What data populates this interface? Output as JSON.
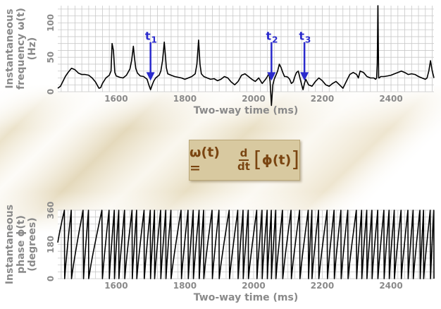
{
  "chart_data": [
    {
      "type": "line",
      "id": "frequency",
      "xlabel": "Two-way time (ms)",
      "ylabel_lines": [
        "Instantaneous",
        "frequency ω(t)",
        "(Hz)"
      ],
      "xlim": [
        1430,
        2525
      ],
      "ylim": [
        0,
        125
      ],
      "xticks": [
        1600,
        1800,
        2000,
        2200,
        2400
      ],
      "yticks": [
        0,
        50,
        100
      ],
      "grid": true,
      "line_color": "#000000",
      "marker_color": "#2a2acc",
      "markers": [
        {
          "label": "t",
          "sub": "1",
          "x": 1700
        },
        {
          "label": "t",
          "sub": "2",
          "x": 2052
        },
        {
          "label": "t",
          "sub": "3",
          "x": 2148
        }
      ],
      "x": [
        1430,
        1438,
        1445,
        1452,
        1460,
        1470,
        1480,
        1490,
        1500,
        1510,
        1520,
        1530,
        1540,
        1550,
        1555,
        1560,
        1570,
        1580,
        1585,
        1588,
        1592,
        1596,
        1600,
        1610,
        1620,
        1630,
        1640,
        1645,
        1650,
        1653,
        1657,
        1662,
        1670,
        1680,
        1690,
        1695,
        1700,
        1705,
        1710,
        1715,
        1720,
        1725,
        1730,
        1735,
        1740,
        1743,
        1746,
        1750,
        1760,
        1770,
        1780,
        1790,
        1800,
        1810,
        1820,
        1830,
        1835,
        1840,
        1844,
        1848,
        1855,
        1865,
        1875,
        1885,
        1895,
        1905,
        1915,
        1925,
        1935,
        1945,
        1955,
        1965,
        1975,
        1985,
        1995,
        2005,
        2015,
        2025,
        2035,
        2040,
        2045,
        2048,
        2052,
        2056,
        2060,
        2065,
        2070,
        2075,
        2080,
        2085,
        2090,
        2095,
        2100,
        2105,
        2110,
        2115,
        2120,
        2125,
        2130,
        2135,
        2140,
        2144,
        2148,
        2152,
        2156,
        2160,
        2170,
        2180,
        2190,
        2200,
        2210,
        2220,
        2230,
        2240,
        2250,
        2260,
        2270,
        2280,
        2290,
        2300,
        2305,
        2310,
        2320,
        2330,
        2340,
        2350,
        2355,
        2358,
        2360,
        2362,
        2364,
        2366,
        2370,
        2380,
        2390,
        2400,
        2410,
        2420,
        2430,
        2440,
        2450,
        2460,
        2470,
        2480,
        2490,
        2500,
        2505,
        2510,
        2515,
        2520,
        2525
      ],
      "values": [
        5,
        8,
        15,
        22,
        28,
        34,
        32,
        27,
        25,
        25,
        24,
        20,
        14,
        5,
        6,
        12,
        20,
        24,
        30,
        70,
        60,
        28,
        23,
        21,
        20,
        24,
        33,
        45,
        66,
        50,
        34,
        27,
        23,
        22,
        18,
        10,
        3,
        10,
        16,
        20,
        22,
        24,
        30,
        45,
        72,
        55,
        35,
        26,
        24,
        22,
        21,
        20,
        18,
        20,
        22,
        26,
        40,
        75,
        40,
        26,
        22,
        20,
        18,
        19,
        16,
        18,
        22,
        20,
        14,
        10,
        15,
        24,
        26,
        22,
        18,
        15,
        20,
        12,
        18,
        22,
        26,
        15,
        -20,
        10,
        18,
        24,
        30,
        40,
        35,
        28,
        22,
        22,
        21,
        18,
        12,
        14,
        22,
        28,
        30,
        20,
        10,
        3,
        12,
        18,
        14,
        10,
        8,
        15,
        20,
        16,
        10,
        8,
        12,
        15,
        10,
        5,
        15,
        25,
        28,
        25,
        20,
        30,
        28,
        22,
        20,
        20,
        18,
        20,
        40,
        125,
        20,
        20,
        22,
        22,
        23,
        24,
        26,
        28,
        30,
        28,
        25,
        26,
        25,
        22,
        20,
        18,
        20,
        30,
        45,
        30,
        20
      ],
      "marker_y_from": 72,
      "marker_y_to": 18
    },
    {
      "type": "line",
      "id": "phase",
      "xlabel": "Two-way time (ms)",
      "ylabel_lines": [
        "Instantaneous",
        "phase ϕ(t)",
        "(degrees)"
      ],
      "xlim": [
        1430,
        2525
      ],
      "ylim": [
        0,
        360
      ],
      "xticks": [
        1600,
        1800,
        2000,
        2200,
        2400
      ],
      "yticks": [
        0,
        180,
        360
      ],
      "grid": true,
      "line_color": "#000000",
      "wraps": [
        1430,
        1450,
        1470,
        1505,
        1520,
        1560,
        1580,
        1595,
        1608,
        1625,
        1647,
        1660,
        1682,
        1700,
        1712,
        1730,
        1745,
        1760,
        1790,
        1810,
        1825,
        1842,
        1855,
        1880,
        1900,
        1930,
        1955,
        1970,
        1985,
        2010,
        2025,
        2040,
        2052,
        2065,
        2085,
        2110,
        2135,
        2160,
        2170,
        2190,
        2215,
        2235,
        2255,
        2275,
        2300,
        2315,
        2330,
        2345,
        2362,
        2380,
        2395,
        2410,
        2430,
        2450,
        2465,
        2485,
        2495,
        2515,
        2525
      ],
      "start_phase": 190
    }
  ],
  "formula": {
    "lhs": "ω(t) =",
    "num": "d",
    "den": "dt",
    "open": "[",
    "arg": "ϕ(t)",
    "close": "]"
  },
  "colors": {
    "text": "#8a8a8a",
    "formula_text": "#7a4511",
    "formula_bg": "#d8c9a0",
    "grid": "#c8c8c8"
  }
}
